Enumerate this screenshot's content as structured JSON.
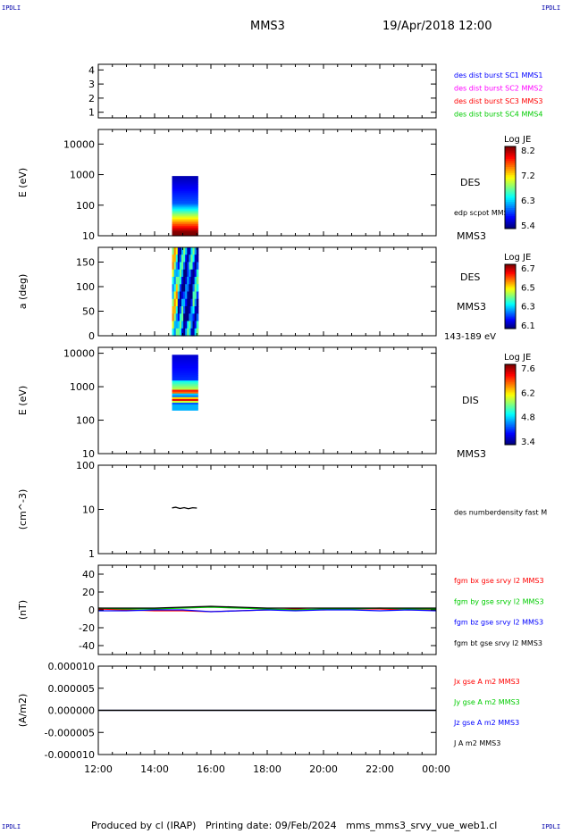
{
  "corner_label": "IPDLI",
  "header": {
    "spacecraft": "MMS3",
    "datetime": "19/Apr/2018 12:00"
  },
  "footer": {
    "text": "Produced by cl (IRAP)   Printing date: 09/Feb/2024   mms_mms3_srvy_vue_web1.cl"
  },
  "time_axis": {
    "ticks": [
      "12:00",
      "14:00",
      "16:00",
      "18:00",
      "20:00",
      "22:00",
      "00:00"
    ],
    "range_hours": [
      12,
      24
    ]
  },
  "colors": {
    "blue": "#0000ff",
    "magenta": "#ff00ff",
    "red": "#ff0000",
    "green": "#00cc00",
    "black": "#000000"
  },
  "chart_data": [
    {
      "id": "panel1",
      "type": "scatter",
      "ylabel": "",
      "ylim": [
        0.6,
        4.4
      ],
      "yticks": [
        "1",
        "2",
        "3",
        "4"
      ],
      "legend": [
        {
          "name": "des dist burst SC1 MMS1",
          "color": "#0000ff"
        },
        {
          "name": "des dist burst SC2 MMS2",
          "color": "#ff00ff"
        },
        {
          "name": "des dist burst SC3 MMS3",
          "color": "#ff0000"
        },
        {
          "name": "des dist burst SC4 MMS4",
          "color": "#00cc00"
        }
      ]
    },
    {
      "id": "panel2",
      "type": "heatmap",
      "ylabel": "E (eV)",
      "yscale": "log",
      "ylim": [
        10,
        30000
      ],
      "yticks": [
        "10",
        "100",
        "1000",
        "10000"
      ],
      "time_range": [
        14.62,
        15.55
      ],
      "energy_range": [
        10,
        900
      ],
      "labels": [
        "DES",
        "edp scpot MMS3",
        "MMS3"
      ],
      "colorbar": {
        "title": "Log JE",
        "ticks": [
          "8.2",
          "7.2",
          "6.3",
          "5.4"
        ]
      }
    },
    {
      "id": "panel3",
      "type": "heatmap",
      "ylabel": "a (deg)",
      "ylim": [
        0,
        180
      ],
      "yticks": [
        "0",
        "50",
        "100",
        "150"
      ],
      "time_range": [
        14.62,
        15.55
      ],
      "labels": [
        "DES",
        "MMS3",
        "143-189 eV"
      ],
      "colorbar": {
        "title": "Log JE",
        "ticks": [
          "6.7",
          "6.5",
          "6.3",
          "6.1"
        ]
      }
    },
    {
      "id": "panel4",
      "type": "heatmap",
      "ylabel": "E (eV)",
      "yscale": "log",
      "ylim": [
        10,
        15000
      ],
      "yticks": [
        "10",
        "100",
        "1000",
        "10000"
      ],
      "time_range": [
        14.62,
        15.55
      ],
      "energy_range": [
        200,
        9000
      ],
      "labels": [
        "DIS",
        "MMS3"
      ],
      "colorbar": {
        "title": "Log JE",
        "ticks": [
          "7.6",
          "6.2",
          "4.8",
          "3.4"
        ]
      }
    },
    {
      "id": "panel5",
      "type": "line",
      "ylabel": "(cm^-3)",
      "yscale": "log",
      "ylim": [
        1,
        100
      ],
      "yticks": [
        "1",
        "10",
        "100"
      ],
      "series": [
        {
          "name": "des numberdensity fast M",
          "color": "#000000",
          "x": [
            14.62,
            14.75,
            14.9,
            15.05,
            15.2,
            15.35,
            15.5
          ],
          "values": [
            10.8,
            11.2,
            10.5,
            11.0,
            10.4,
            10.9,
            10.7
          ]
        }
      ]
    },
    {
      "id": "panel6",
      "type": "line",
      "ylabel": "(nT)",
      "ylim": [
        -50,
        50
      ],
      "yticks": [
        "-40",
        "-20",
        "0",
        "20",
        "40"
      ],
      "series": [
        {
          "name": "fgm bx gse srvy l2 MMS3",
          "color": "#ff0000",
          "x": [
            12,
            13,
            14,
            15,
            16,
            17,
            18,
            19,
            20,
            21,
            22,
            23,
            24
          ],
          "values": [
            1,
            0,
            -1,
            -1,
            -2,
            -1,
            0,
            1,
            0,
            1,
            1,
            0,
            0
          ]
        },
        {
          "name": "fgm by gse srvy l2 MMS3",
          "color": "#00cc00",
          "x": [
            12,
            13,
            14,
            15,
            16,
            17,
            18,
            19,
            20,
            21,
            22,
            23,
            24
          ],
          "values": [
            2,
            1,
            1,
            2,
            3,
            2,
            1,
            0,
            1,
            1,
            2,
            1,
            1
          ]
        },
        {
          "name": "fgm bz gse srvy l2 MMS3",
          "color": "#0000ff",
          "x": [
            12,
            13,
            14,
            15,
            16,
            17,
            18,
            19,
            20,
            21,
            22,
            23,
            24
          ],
          "values": [
            -1,
            -1,
            0,
            0,
            -2,
            -1,
            0,
            -1,
            0,
            0,
            -1,
            0,
            -1
          ]
        },
        {
          "name": "fgm bt gse srvy l2 MMS3",
          "color": "#000000",
          "x": [
            12,
            13,
            14,
            15,
            16,
            17,
            18,
            19,
            20,
            21,
            22,
            23,
            24
          ],
          "values": [
            2,
            2,
            2,
            3,
            4,
            3,
            2,
            2,
            2,
            2,
            2,
            2,
            2
          ]
        }
      ]
    },
    {
      "id": "panel7",
      "type": "line",
      "ylabel": "(A/m2)",
      "ylim": [
        -1e-05,
        1e-05
      ],
      "yticks": [
        "-0.000010",
        "-0.000005",
        "0.000000",
        "0.000005",
        "0.000010"
      ],
      "series": [
        {
          "name": "Jx gse A m2 MMS3",
          "color": "#ff0000",
          "x": [
            12,
            24
          ],
          "values": [
            0,
            0
          ]
        },
        {
          "name": "Jy gse A m2 MMS3",
          "color": "#00cc00",
          "x": [
            12,
            24
          ],
          "values": [
            0,
            0
          ]
        },
        {
          "name": "Jz gse A m2 MMS3",
          "color": "#0000ff",
          "x": [
            12,
            24
          ],
          "values": [
            0,
            0
          ]
        },
        {
          "name": "J A m2 MMS3",
          "color": "#000000",
          "x": [
            12,
            24
          ],
          "values": [
            0,
            0
          ]
        }
      ]
    }
  ]
}
